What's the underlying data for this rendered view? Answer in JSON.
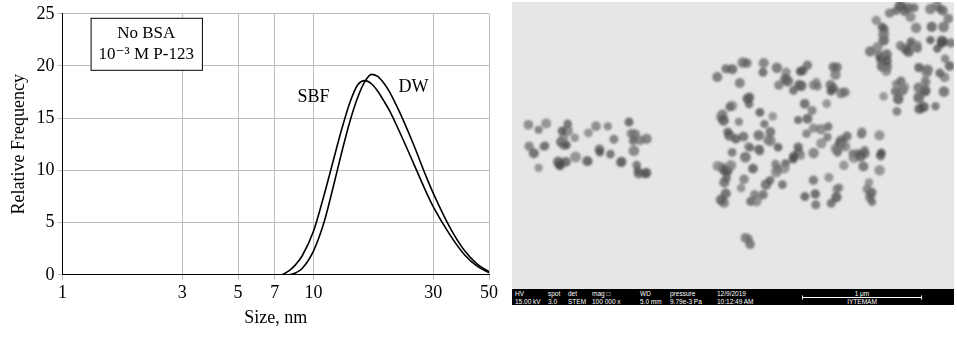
{
  "chart_data": {
    "type": "line",
    "inset_text": [
      "No BSA",
      "10⁻³ M P-123"
    ],
    "x_label": "Size, nm",
    "y_label": "Relative Frequency",
    "log": "x",
    "grid": true,
    "xlim": [
      1,
      50
    ],
    "xticks": [
      1,
      3,
      5,
      7,
      10,
      30,
      50
    ],
    "ylim": [
      0,
      25
    ],
    "yticks": [
      0,
      5,
      10,
      15,
      20,
      25
    ],
    "x": [
      7.5,
      8,
      8.5,
      9,
      10,
      11,
      12,
      13,
      14,
      15,
      16,
      17,
      18,
      19,
      20,
      22,
      25,
      28,
      30,
      35,
      40,
      45,
      50
    ],
    "series": [
      {
        "name": "SBF",
        "color": "#000000",
        "values": [
          0,
          0.4,
          1.0,
          1.8,
          4.2,
          7.6,
          11,
          14.1,
          16.6,
          18.2,
          18.6,
          18.3,
          17.6,
          16.7,
          15.8,
          13.7,
          10.7,
          8,
          6.5,
          3.8,
          1.9,
          0.8,
          0.2
        ]
      },
      {
        "name": "DW",
        "color": "#000000",
        "values": [
          null,
          0,
          0.2,
          0.6,
          2.3,
          5,
          8.5,
          11.9,
          14.8,
          17,
          18.5,
          19.2,
          19,
          18.4,
          17.6,
          15.6,
          12.5,
          9.5,
          7.8,
          4.5,
          2.3,
          1,
          0.3
        ]
      }
    ],
    "annotations": [
      {
        "text": "SBF",
        "x": 10,
        "y": 17
      },
      {
        "text": "DW",
        "x": 25,
        "y": 18
      }
    ]
  },
  "micrograph": {
    "info_bar": [
      {
        "label": "HV",
        "value": "15.00 kV"
      },
      {
        "label": "spot",
        "value": "3.0"
      },
      {
        "label": "det",
        "value": "STEM"
      },
      {
        "label": "mag □",
        "value": "100 000 x"
      },
      {
        "label": "WD",
        "value": "5.0 mm"
      },
      {
        "label": "pressure",
        "value": "9.79e-3 Pa"
      },
      {
        "label": "12/9/2019",
        "value": "10:12:49 AM"
      }
    ],
    "scale_bar": "1 μm",
    "facility": "IYTEMAM"
  }
}
